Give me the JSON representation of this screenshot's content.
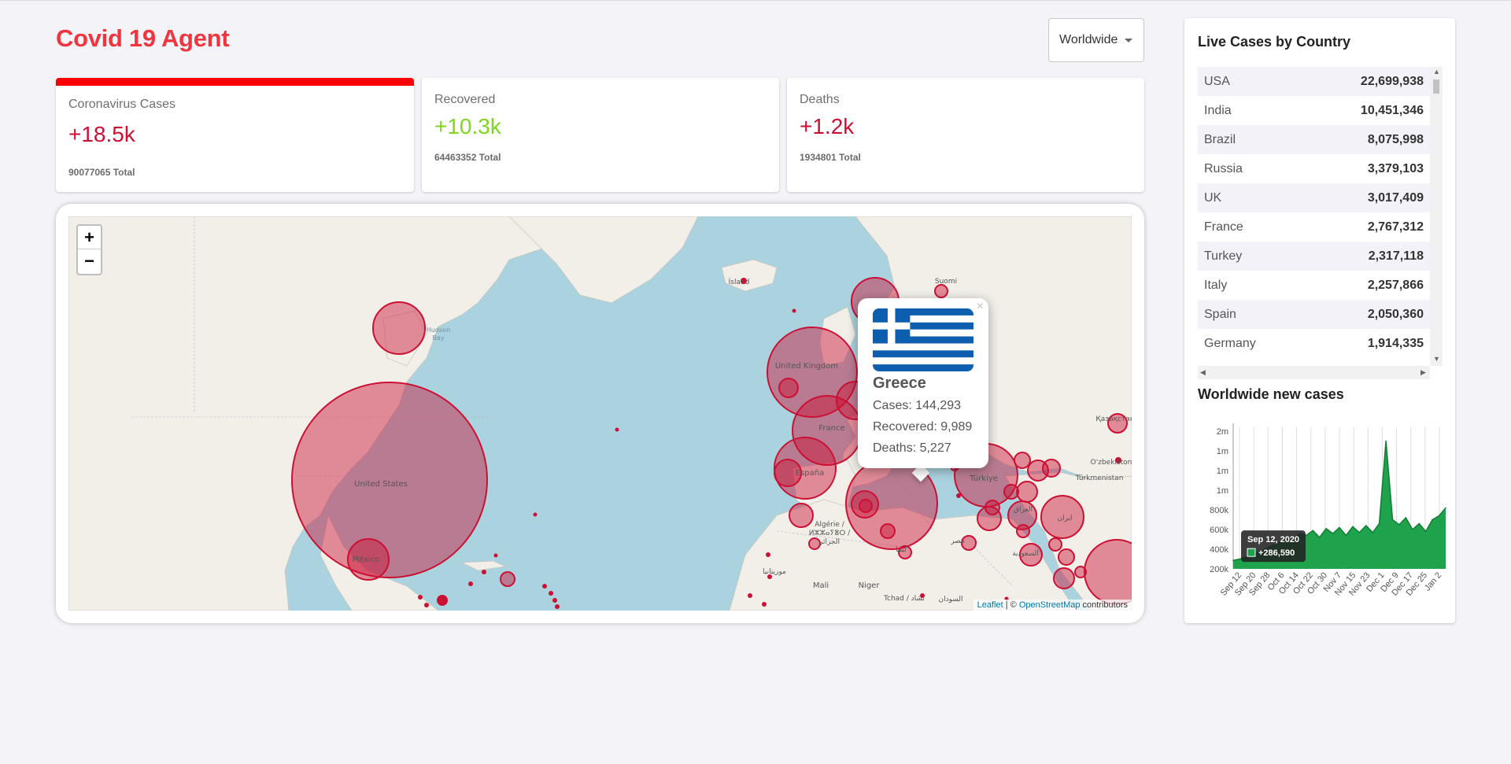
{
  "header": {
    "title": "Covid 19 Agent",
    "country_select": "Worldwide"
  },
  "cards": {
    "cases": {
      "title": "Coronavirus Cases",
      "value": "+18.5k",
      "total": "90077065 Total"
    },
    "recovered": {
      "title": "Recovered",
      "value": "+10.3k",
      "total": "64463352 Total"
    },
    "deaths": {
      "title": "Deaths",
      "value": "+1.2k",
      "total": "1934801 Total"
    }
  },
  "map": {
    "zoom_in": "+",
    "zoom_out": "−",
    "attribution": {
      "leaflet": "Leaflet",
      "separator": " | © ",
      "osm": "OpenStreetMap",
      "suffix": " contributors"
    },
    "circle_color": "#cc1034",
    "labels": [
      "Ísland",
      "Hudson Bay",
      "United States",
      "México",
      "United Kingdom",
      "France",
      "España",
      "Algérie / ⵍⵣⵣⴰⵢⴻⵔ / الجزائر",
      "Mali",
      "Niger",
      "Tchad / تشاد",
      "السودان",
      "ليبيا",
      "مصر",
      "Türkiye",
      "العراق",
      "ایران",
      "Suomi",
      "Қазақстан",
      "Türkmenistan",
      "O'zbekiston",
      "موريتانيا",
      "السعودية"
    ]
  },
  "popup": {
    "country": "Greece",
    "cases": "Cases: 144,293",
    "recovered": "Recovered: 9,989",
    "deaths": "Deaths: 5,227",
    "close": "×"
  },
  "sidebar": {
    "table_title": "Live Cases by Country",
    "rows": [
      {
        "country": "USA",
        "cases": "22,699,938"
      },
      {
        "country": "India",
        "cases": "10,451,346"
      },
      {
        "country": "Brazil",
        "cases": "8,075,998"
      },
      {
        "country": "Russia",
        "cases": "3,379,103"
      },
      {
        "country": "UK",
        "cases": "3,017,409"
      },
      {
        "country": "France",
        "cases": "2,767,312"
      },
      {
        "country": "Turkey",
        "cases": "2,317,118"
      },
      {
        "country": "Italy",
        "cases": "2,257,866"
      },
      {
        "country": "Spain",
        "cases": "2,050,360"
      },
      {
        "country": "Germany",
        "cases": "1,914,335"
      }
    ],
    "chart_title": "Worldwide new cases",
    "tooltip": {
      "date": "Sep 12, 2020",
      "value": "+286,590"
    }
  },
  "chart_data": {
    "type": "area",
    "title": "Worldwide new cases",
    "series_color": "#1ea24b",
    "y_tick_labels": [
      "200k",
      "400k",
      "600k",
      "800k",
      "1m",
      "1m",
      "1m",
      "2m"
    ],
    "y_tick_values": [
      200000,
      400000,
      600000,
      800000,
      1000000,
      1200000,
      1400000,
      1600000
    ],
    "ylim": [
      200000,
      1600000
    ],
    "x_tick_labels": [
      "Sep 12",
      "Sep 20",
      "Sep 28",
      "Oct 6",
      "Oct 14",
      "Oct 22",
      "Oct 30",
      "Nov 7",
      "Nov 15",
      "Nov 23",
      "Dec 1",
      "Dec 9",
      "Dec 17",
      "Dec 25",
      "Jan 2"
    ],
    "grid": true,
    "x": [
      "Sep 12",
      "Sep 16",
      "Sep 20",
      "Sep 24",
      "Sep 28",
      "Oct 2",
      "Oct 6",
      "Oct 10",
      "Oct 14",
      "Oct 18",
      "Oct 22",
      "Oct 26",
      "Oct 30",
      "Nov 3",
      "Nov 7",
      "Nov 11",
      "Nov 15",
      "Nov 19",
      "Nov 23",
      "Nov 27",
      "Dec 1",
      "Dec 5",
      "Dec 9",
      "Dec 11",
      "Dec 13",
      "Dec 17",
      "Dec 21",
      "Dec 25",
      "Dec 29",
      "Jan 2",
      "Jan 5",
      "Jan 7",
      "Jan 9"
    ],
    "values": [
      286590,
      300000,
      320000,
      350000,
      380000,
      410000,
      440000,
      470000,
      500000,
      490000,
      560000,
      540000,
      590000,
      520000,
      610000,
      560000,
      620000,
      540000,
      630000,
      570000,
      640000,
      570000,
      660000,
      1500000,
      700000,
      650000,
      720000,
      600000,
      660000,
      580000,
      700000,
      740000,
      820000
    ]
  }
}
